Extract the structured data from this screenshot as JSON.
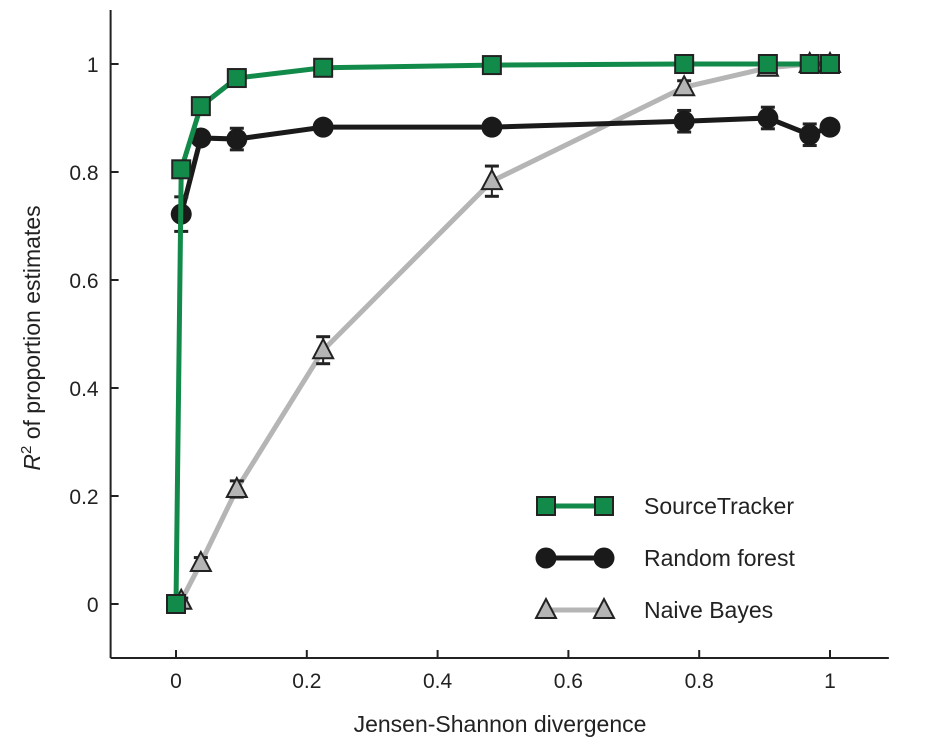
{
  "chart_data": {
    "type": "line",
    "title": "",
    "xlabel": "Jensen-Shannon divergence",
    "ylabel_base": "R",
    "ylabel_sup": "2",
    "ylabel_rest": " of proportion estimates",
    "xlim": [
      -0.1,
      1.09
    ],
    "ylim": [
      -0.1,
      1.1
    ],
    "xticks": [
      0,
      0.2,
      0.4,
      0.6,
      0.8,
      1
    ],
    "xtick_labels": [
      "0",
      "0.2",
      "0.4",
      "0.6",
      "0.8",
      "1"
    ],
    "yticks": [
      0,
      0.2,
      0.4,
      0.6,
      0.8,
      1
    ],
    "ytick_labels": [
      "0",
      "0.2",
      "0.4",
      "0.6",
      "0.8",
      "1"
    ],
    "grid": false,
    "legend_position": "bottom-right",
    "series": [
      {
        "name": "SourceTracker",
        "marker": "square",
        "line_color": "#128a4a",
        "marker_color": "#128a4a",
        "x": [
          0,
          0.008,
          0.038,
          0.093,
          0.225,
          0.483,
          0.777,
          0.905,
          0.969,
          1
        ],
        "y": [
          0,
          0.805,
          0.922,
          0.974,
          0.993,
          0.998,
          1.0,
          1.0,
          1.0,
          1.0
        ],
        "err": [
          0,
          0.01,
          0.005,
          0.005,
          0.003,
          0.002,
          0.001,
          0.001,
          0.001,
          0.001
        ]
      },
      {
        "name": "Random forest",
        "marker": "circle",
        "line_color": "#1a1a1a",
        "marker_color": "#1a1a1a",
        "x": [
          0.008,
          0.038,
          0.093,
          0.225,
          0.483,
          0.777,
          0.905,
          0.969,
          1
        ],
        "y": [
          0.722,
          0.863,
          0.861,
          0.883,
          0.883,
          0.894,
          0.9,
          0.869,
          0.883
        ],
        "err": [
          0.032,
          0.01,
          0.02,
          0.008,
          0.008,
          0.02,
          0.02,
          0.02,
          0.01
        ]
      },
      {
        "name": "Naive Bayes",
        "marker": "triangle",
        "line_color": "#b5b5b5",
        "marker_color": "#b5b5b5",
        "x": [
          0.008,
          0.038,
          0.093,
          0.225,
          0.483,
          0.777,
          0.905,
          0.969,
          1
        ],
        "y": [
          0.006,
          0.076,
          0.213,
          0.47,
          0.783,
          0.957,
          0.993,
          1.0,
          1.0
        ],
        "err": [
          0.005,
          0.01,
          0.015,
          0.025,
          0.028,
          0.012,
          0.012,
          0.002,
          0.001
        ]
      }
    ]
  }
}
